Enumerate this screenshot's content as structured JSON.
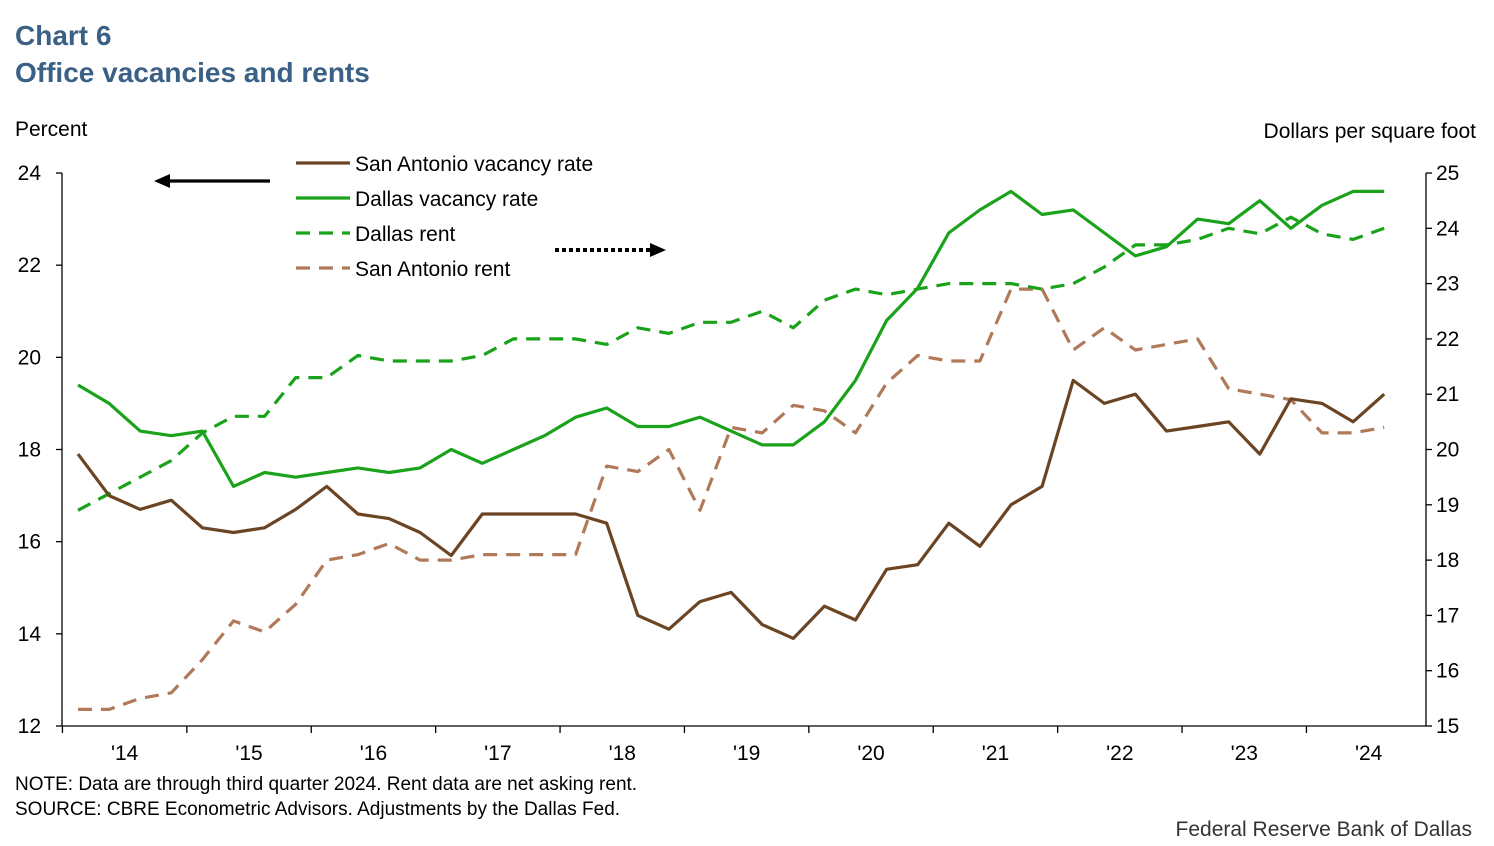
{
  "title": {
    "line1": "Chart 6",
    "line2": "Office vacancies and rents"
  },
  "notes": {
    "note": "NOTE: Data are through third quarter 2024. Rent data are net asking rent.",
    "source": "SOURCE: CBRE Econometric Advisors. Adjustments by the Dallas Fed."
  },
  "credit": "Federal Reserve Bank of Dallas",
  "colors": {
    "san_antonio": "#6b4423",
    "dallas": "#1aa31a",
    "san_antonio_rent": "#b07a5a",
    "arrow": "#000000"
  },
  "chart_data": {
    "type": "line",
    "x_ticks": [
      "'14",
      "'15",
      "'16",
      "'17",
      "'18",
      "'19",
      "'20",
      "'21",
      "'22",
      "'23",
      "'24"
    ],
    "x_start": "2014 Q1",
    "x_end": "2024 Q3",
    "left_axis": {
      "label": "Percent",
      "range": [
        12,
        24
      ],
      "ticks": [
        12,
        14,
        16,
        18,
        20,
        22,
        24
      ]
    },
    "right_axis": {
      "label": "Dollars per square foot",
      "range": [
        15,
        25
      ],
      "ticks": [
        15,
        16,
        17,
        18,
        19,
        20,
        21,
        22,
        23,
        24,
        25
      ]
    },
    "series": [
      {
        "name": "San Antonio vacancy rate",
        "axis": "left",
        "style": "solid",
        "values": [
          17.9,
          17.0,
          16.7,
          16.9,
          16.3,
          16.2,
          16.3,
          16.7,
          17.2,
          16.6,
          16.5,
          16.2,
          15.7,
          16.6,
          16.6,
          16.6,
          16.6,
          16.4,
          14.4,
          14.1,
          14.7,
          14.9,
          14.2,
          13.9,
          14.6,
          14.3,
          15.4,
          15.5,
          16.4,
          15.9,
          16.8,
          17.2,
          19.5,
          19.0,
          19.2,
          18.4,
          18.5,
          18.6,
          17.9,
          19.1,
          19.0,
          18.6,
          19.2
        ]
      },
      {
        "name": "Dallas vacancy rate",
        "axis": "left",
        "style": "solid",
        "values": [
          19.4,
          19.0,
          18.4,
          18.3,
          18.4,
          17.2,
          17.5,
          17.4,
          17.5,
          17.6,
          17.5,
          17.6,
          18.0,
          17.7,
          18.0,
          18.3,
          18.7,
          18.9,
          18.5,
          18.5,
          18.7,
          18.4,
          18.1,
          18.1,
          18.6,
          19.5,
          20.8,
          21.5,
          22.7,
          23.2,
          23.6,
          23.1,
          23.2,
          22.7,
          22.2,
          22.4,
          23.0,
          22.9,
          23.4,
          22.8,
          23.3,
          23.6,
          23.6
        ]
      },
      {
        "name": "Dallas rent",
        "axis": "right",
        "style": "dashed",
        "values": [
          18.9,
          19.2,
          19.5,
          19.8,
          20.3,
          20.6,
          20.6,
          21.3,
          21.3,
          21.7,
          21.6,
          21.6,
          21.6,
          21.7,
          22.0,
          22.0,
          22.0,
          21.9,
          22.2,
          22.1,
          22.3,
          22.3,
          22.5,
          22.2,
          22.7,
          22.9,
          22.8,
          22.9,
          23.0,
          23.0,
          23.0,
          22.9,
          23.0,
          23.3,
          23.7,
          23.7,
          23.8,
          24.0,
          23.9,
          24.2,
          23.9,
          23.8,
          24.0
        ]
      },
      {
        "name": "San Antonio rent",
        "axis": "right",
        "style": "dashed",
        "values": [
          15.3,
          15.3,
          15.5,
          15.6,
          16.2,
          16.9,
          16.7,
          17.2,
          18.0,
          18.1,
          18.3,
          18.0,
          18.0,
          18.1,
          18.1,
          18.1,
          18.1,
          19.7,
          19.6,
          20.0,
          18.9,
          20.4,
          20.3,
          20.8,
          20.7,
          20.3,
          21.2,
          21.7,
          21.6,
          21.6,
          22.9,
          22.9,
          21.8,
          22.2,
          21.8,
          21.9,
          22.0,
          21.1,
          21.0,
          20.9,
          20.3,
          20.3,
          20.4
        ]
      }
    ]
  }
}
